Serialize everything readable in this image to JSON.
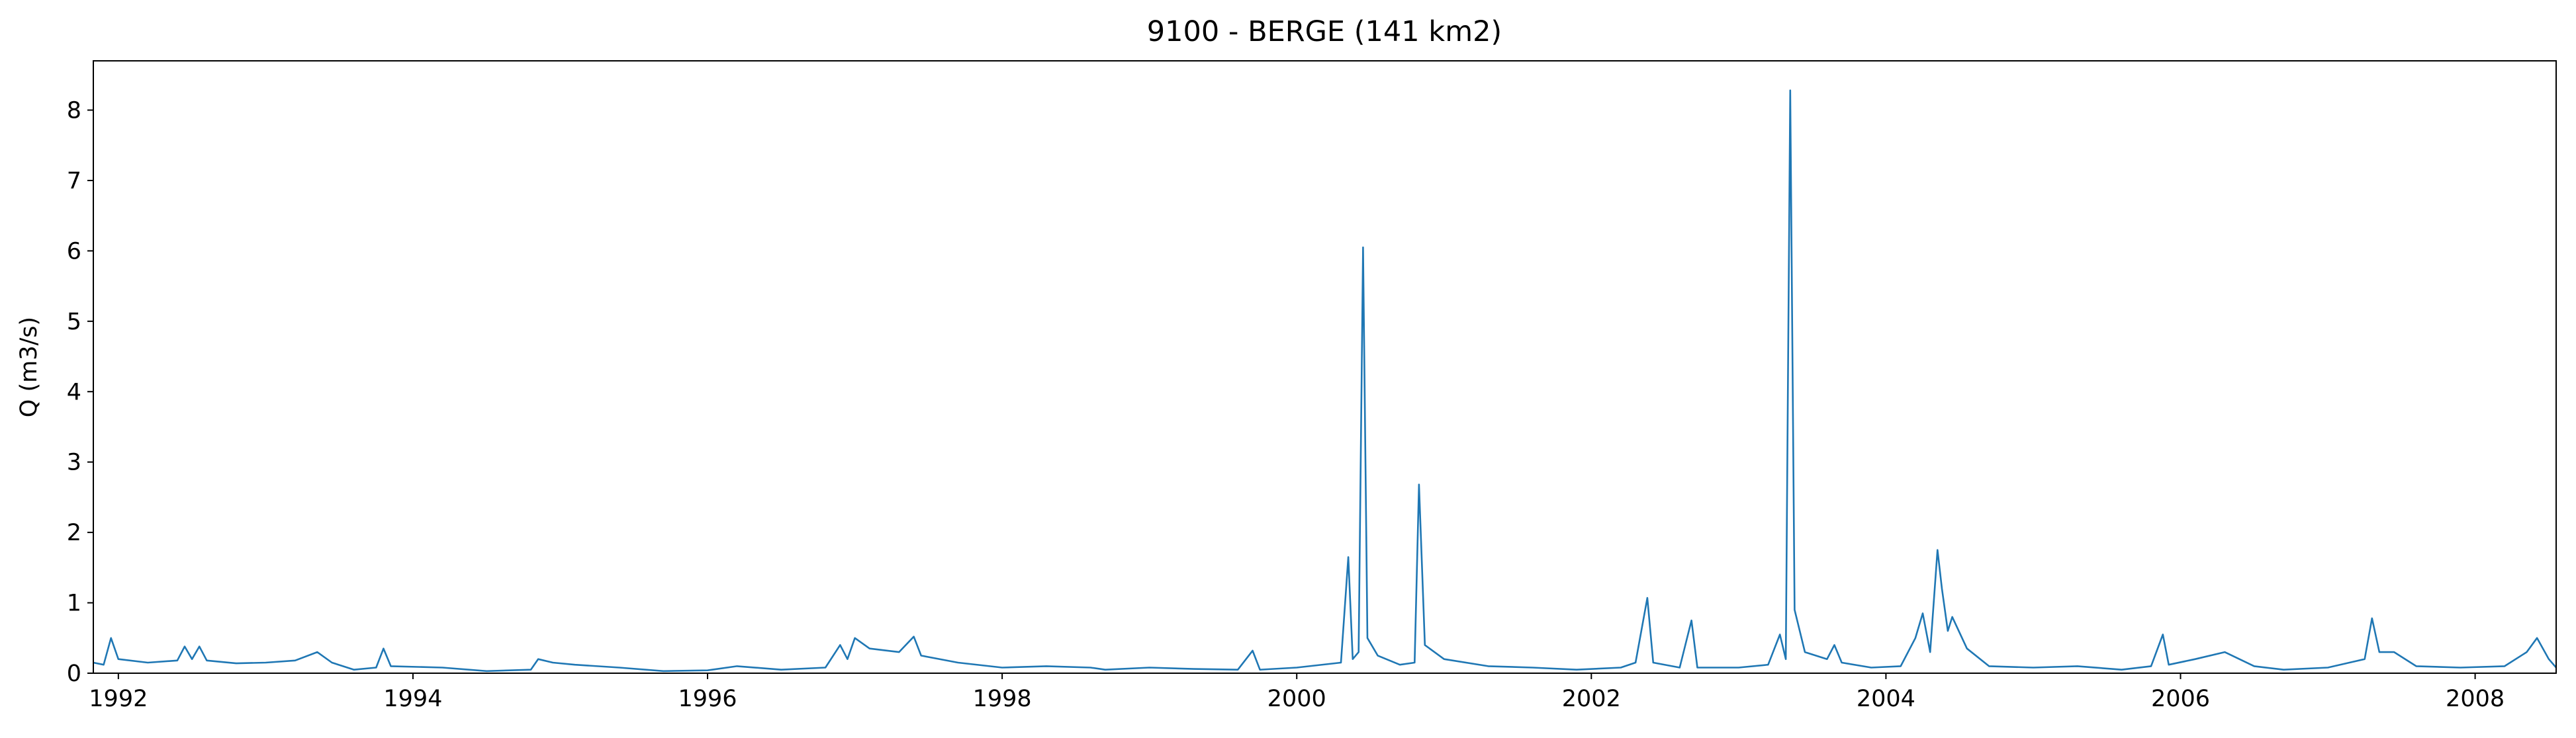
{
  "chart_data": {
    "type": "line",
    "title": "9100 - BERGE (141 km2)",
    "y_label": "Q (m3/s)",
    "color": "#1f77b4",
    "x": [
      1991.83,
      1991.9,
      1991.95,
      1992.0,
      1992.2,
      1992.4,
      1992.45,
      1992.5,
      1992.55,
      1992.6,
      1992.8,
      1993.0,
      1993.2,
      1993.35,
      1993.45,
      1993.6,
      1993.75,
      1993.8,
      1993.85,
      1994.2,
      1994.5,
      1994.8,
      1994.85,
      1994.95,
      1995.1,
      1995.4,
      1995.7,
      1996.0,
      1996.2,
      1996.5,
      1996.8,
      1996.9,
      1996.95,
      1997.0,
      1997.1,
      1997.3,
      1997.4,
      1997.45,
      1997.7,
      1998.0,
      1998.3,
      1998.6,
      1998.7,
      1999.0,
      1999.3,
      1999.6,
      1999.7,
      1999.75,
      2000.0,
      2000.3,
      2000.35,
      2000.38,
      2000.42,
      2000.45,
      2000.48,
      2000.55,
      2000.7,
      2000.8,
      2000.83,
      2000.87,
      2001.0,
      2001.3,
      2001.6,
      2001.9,
      2002.2,
      2002.3,
      2002.38,
      2002.42,
      2002.6,
      2002.68,
      2002.72,
      2003.0,
      2003.2,
      2003.28,
      2003.32,
      2003.35,
      2003.38,
      2003.45,
      2003.6,
      2003.65,
      2003.7,
      2003.9,
      2004.1,
      2004.2,
      2004.25,
      2004.3,
      2004.35,
      2004.38,
      2004.42,
      2004.45,
      2004.55,
      2004.7,
      2005.0,
      2005.3,
      2005.6,
      2005.8,
      2005.88,
      2005.92,
      2006.1,
      2006.3,
      2006.5,
      2006.7,
      2007.0,
      2007.25,
      2007.3,
      2007.35,
      2007.45,
      2007.6,
      2007.9,
      2008.2,
      2008.35,
      2008.42,
      2008.5,
      2008.55
    ],
    "values": [
      0.15,
      0.12,
      0.5,
      0.2,
      0.15,
      0.18,
      0.38,
      0.2,
      0.38,
      0.18,
      0.14,
      0.15,
      0.18,
      0.3,
      0.15,
      0.05,
      0.08,
      0.35,
      0.1,
      0.08,
      0.03,
      0.05,
      0.2,
      0.15,
      0.12,
      0.08,
      0.03,
      0.04,
      0.1,
      0.05,
      0.08,
      0.4,
      0.2,
      0.5,
      0.35,
      0.3,
      0.52,
      0.25,
      0.15,
      0.08,
      0.1,
      0.08,
      0.05,
      0.08,
      0.06,
      0.05,
      0.32,
      0.05,
      0.08,
      0.15,
      1.65,
      0.2,
      0.3,
      6.05,
      0.5,
      0.25,
      0.12,
      0.15,
      2.68,
      0.4,
      0.2,
      0.1,
      0.08,
      0.05,
      0.08,
      0.15,
      1.07,
      0.15,
      0.08,
      0.75,
      0.08,
      0.08,
      0.12,
      0.55,
      0.2,
      8.28,
      0.9,
      0.3,
      0.2,
      0.4,
      0.15,
      0.08,
      0.1,
      0.5,
      0.85,
      0.3,
      1.75,
      1.2,
      0.6,
      0.8,
      0.35,
      0.1,
      0.08,
      0.1,
      0.05,
      0.1,
      0.55,
      0.12,
      0.2,
      0.3,
      0.1,
      0.05,
      0.08,
      0.2,
      0.78,
      0.3,
      0.3,
      0.1,
      0.08,
      0.1,
      0.3,
      0.5,
      0.2,
      0.08
    ],
    "xlim": [
      1991.83,
      2008.55
    ],
    "xticks": [
      1992,
      1994,
      1996,
      1998,
      2000,
      2002,
      2004,
      2006,
      2008
    ],
    "ylim": [
      0,
      8.7
    ],
    "yticks": [
      0,
      1,
      2,
      3,
      4,
      5,
      6,
      7,
      8
    ]
  }
}
